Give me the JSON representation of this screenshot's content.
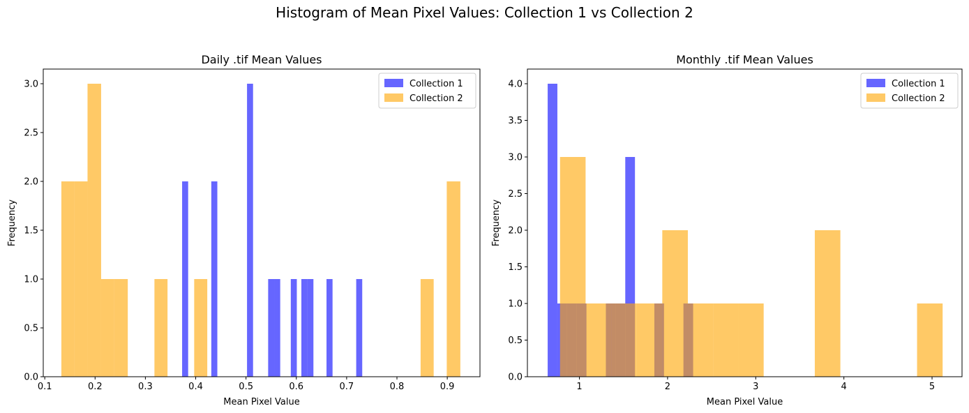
{
  "figure_title": "Histogram of Mean Pixel Values: Collection 1 vs Collection 2",
  "colors": {
    "collection1": "#0000ff",
    "collection2": "#ffa500",
    "alpha": 0.6
  },
  "chart_data": [
    {
      "type": "bar",
      "title": "Daily .tif Mean Values",
      "xlabel": "Mean Pixel Value",
      "ylabel": "Frequency",
      "xlim": [
        0.097,
        0.965
      ],
      "ylim": [
        0,
        3.15
      ],
      "xticks": [
        0.1,
        0.2,
        0.3,
        0.4,
        0.5,
        0.6,
        0.7,
        0.8,
        0.9
      ],
      "xtick_labels": [
        "0.1",
        "0.2",
        "0.3",
        "0.4",
        "0.5",
        "0.6",
        "0.7",
        "0.8",
        "0.9"
      ],
      "yticks": [
        0,
        0.5,
        1,
        1.5,
        2,
        2.5,
        3
      ],
      "ytick_labels": [
        "0.0",
        "0.5",
        "1.0",
        "1.5",
        "2.0",
        "2.5",
        "3.0"
      ],
      "legend": {
        "position": "top-right",
        "entries": [
          "Collection 1",
          "Collection 2"
        ]
      },
      "series": [
        {
          "name": "Collection 1",
          "bins": [
            [
              0.373,
              0.385,
              2
            ],
            [
              0.431,
              0.443,
              2
            ],
            [
              0.502,
              0.514,
              3
            ],
            [
              0.544,
              0.556,
              1
            ],
            [
              0.556,
              0.568,
              1
            ],
            [
              0.589,
              0.601,
              1
            ],
            [
              0.61,
              0.622,
              1
            ],
            [
              0.622,
              0.634,
              1
            ],
            [
              0.66,
              0.672,
              1
            ],
            [
              0.719,
              0.731,
              1
            ]
          ]
        },
        {
          "name": "Collection 2",
          "bins": [
            [
              0.133,
              0.159,
              2
            ],
            [
              0.159,
              0.185,
              2
            ],
            [
              0.185,
              0.212,
              3
            ],
            [
              0.212,
              0.238,
              1
            ],
            [
              0.238,
              0.265,
              1
            ],
            [
              0.318,
              0.344,
              1
            ],
            [
              0.397,
              0.423,
              1
            ],
            [
              0.847,
              0.873,
              1
            ],
            [
              0.899,
              0.926,
              2
            ]
          ]
        }
      ]
    },
    {
      "type": "bar",
      "title": "Monthly .tif Mean Values",
      "xlabel": "Mean Pixel Value",
      "ylabel": "Frequency",
      "xlim": [
        0.41,
        5.34
      ],
      "ylim": [
        0,
        4.2
      ],
      "xticks": [
        1,
        2,
        3,
        4,
        5
      ],
      "xtick_labels": [
        "1",
        "2",
        "3",
        "4",
        "5"
      ],
      "yticks": [
        0,
        0.5,
        1,
        1.5,
        2,
        2.5,
        3,
        3.5,
        4
      ],
      "ytick_labels": [
        "0.0",
        "0.5",
        "1.0",
        "1.5",
        "2.0",
        "2.5",
        "3.0",
        "3.5",
        "4.0"
      ],
      "legend": {
        "position": "top-right",
        "entries": [
          "Collection 1",
          "Collection 2"
        ]
      },
      "series": [
        {
          "name": "Collection 1",
          "bins": [
            [
              0.64,
              0.75,
              4
            ],
            [
              0.75,
              0.86,
              1
            ],
            [
              0.86,
              0.97,
              1
            ],
            [
              0.97,
              1.08,
              1
            ],
            [
              1.3,
              1.41,
              1
            ],
            [
              1.41,
              1.52,
              1
            ],
            [
              1.52,
              1.63,
              3
            ],
            [
              1.85,
              1.96,
              1
            ],
            [
              2.18,
              2.29,
              1
            ]
          ]
        },
        {
          "name": "Collection 2",
          "bins": [
            [
              0.78,
              1.07,
              3
            ],
            [
              1.07,
              1.36,
              1
            ],
            [
              1.36,
              1.65,
              1
            ],
            [
              1.65,
              1.94,
              1
            ],
            [
              1.94,
              2.23,
              2
            ],
            [
              2.23,
              2.52,
              1
            ],
            [
              2.52,
              2.8,
              1
            ],
            [
              2.8,
              3.09,
              1
            ],
            [
              3.67,
              3.96,
              2
            ],
            [
              4.83,
              5.12,
              1
            ]
          ]
        }
      ]
    }
  ]
}
